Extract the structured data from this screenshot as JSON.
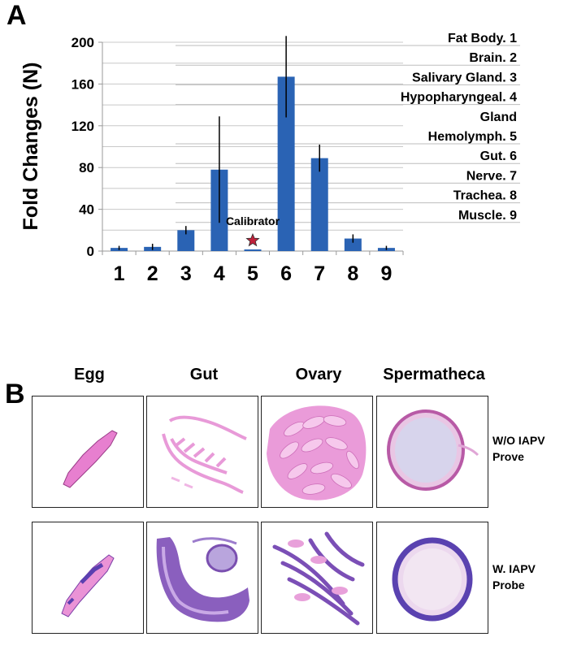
{
  "panel_a": {
    "letter": "A"
  },
  "panel_b": {
    "letter": "B",
    "columns": [
      "Egg",
      "Gut",
      "Ovary",
      "Spermatheca"
    ],
    "rows": [
      {
        "label_line1": "W/O IAPV",
        "label_line2": "Prove"
      },
      {
        "label_line1": "W. IAPV",
        "label_line2": "Probe"
      }
    ]
  },
  "chart_data": {
    "type": "bar",
    "ylabel": "Fold Changes (N)",
    "ylim": [
      0,
      200
    ],
    "yticks": [
      "0",
      "40",
      "80",
      "120",
      "160",
      "200"
    ],
    "categories": [
      "1",
      "2",
      "3",
      "4",
      "5",
      "6",
      "7",
      "8",
      "9"
    ],
    "values": [
      3,
      4,
      20,
      78,
      1,
      167,
      89,
      12,
      3
    ],
    "error": [
      2,
      3,
      4,
      51,
      0,
      39,
      13,
      4,
      2
    ],
    "bar_color": "#2a63b4",
    "calibrator": {
      "category": "5",
      "label": "Calibrator",
      "marker": "star",
      "color": "#c0213b"
    },
    "legend": [
      "Fat Body. 1",
      "Brain. 2",
      "Salivary Gland. 3",
      "Hypopharyngeal. 4",
      "Gland",
      "Hemolymph. 5",
      "Gut. 6",
      "Nerve. 7",
      "Trachea. 8",
      "Muscle. 9"
    ]
  }
}
